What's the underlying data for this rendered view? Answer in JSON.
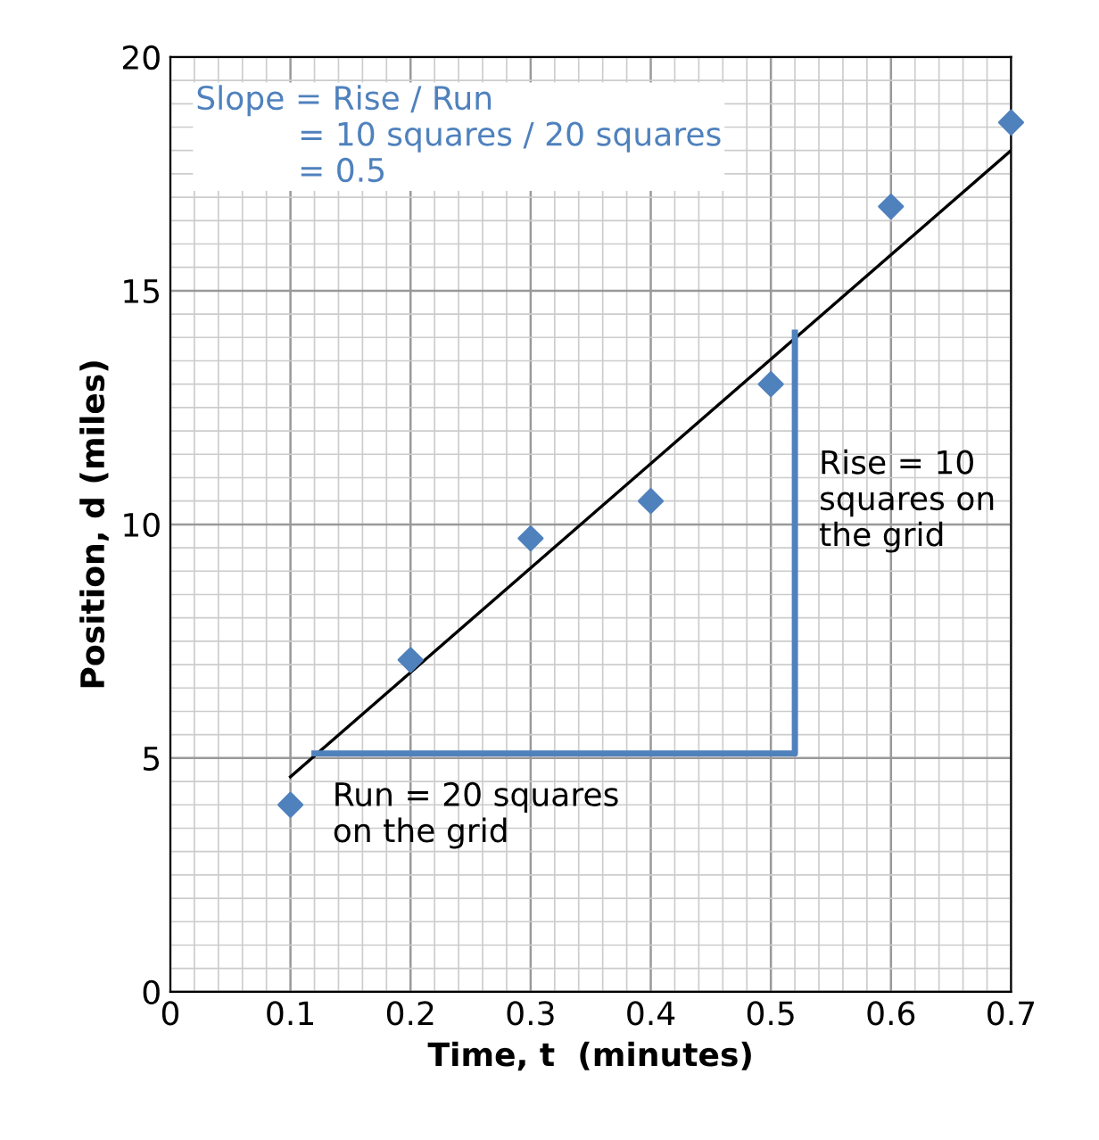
{
  "chart_data": {
    "type": "scatter",
    "xlabel": "Time, t  (minutes)",
    "ylabel": "Position, d (miles)",
    "x": [
      0.1,
      0.2,
      0.3,
      0.4,
      0.5,
      0.6,
      0.7
    ],
    "series": [
      {
        "color": "#4f81bd",
        "values": [
          4.0,
          7.1,
          9.7,
          10.5,
          13.0,
          16.8,
          18.6
        ],
        "marker": "diamond"
      },
      {
        "type": "line",
        "color": "#000000",
        "x": [
          0.1,
          0.7
        ],
        "values": [
          4.6,
          18.0
        ],
        "marker": "none"
      },
      {
        "type": "line",
        "color": "#4f81bd",
        "x": [
          0.12,
          0.52,
          0.52
        ],
        "values": [
          5.1,
          5.1,
          14.1
        ],
        "marker": "none"
      }
    ],
    "xlim": [
      0,
      0.7
    ],
    "ylim": [
      0,
      20
    ],
    "xticks": [
      {
        "value": 0,
        "label": "0"
      },
      0.1,
      0.2,
      0.3,
      0.4,
      0.5,
      0.6,
      0.7
    ],
    "yticks": [
      0,
      5,
      10,
      15,
      20
    ],
    "grid": true,
    "legend": false,
    "annotations": [
      "Slope = Rise / Run\n          = 10 squares / 20 squares\n          = 0.5",
      {
        "text": "Rise = 10\nsquares on\nthe grid",
        "x": 0.52,
        "y": 10.5
      },
      {
        "text": "Run = 20 squares\non the grid",
        "x": 0.32,
        "y": 5.1
      }
    ]
  }
}
